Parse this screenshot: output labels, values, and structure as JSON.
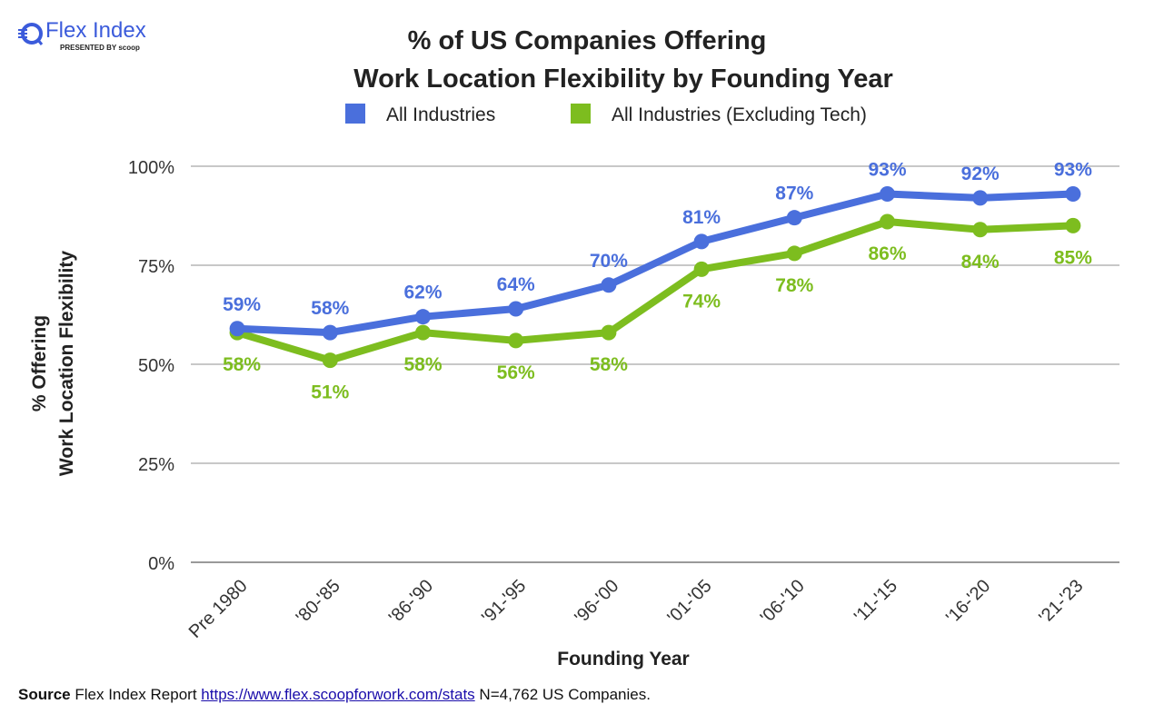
{
  "logo": {
    "name": "Flex Index",
    "presented": "PRESENTED BY scoop"
  },
  "chart_data": {
    "type": "line",
    "title": [
      "% of US Companies Offering",
      "Work Location Flexibility by Founding Year"
    ],
    "xlabel": "Founding Year",
    "ylabel": [
      "% Offering",
      "Work Location Flexibility"
    ],
    "ylim": [
      0,
      100
    ],
    "yticks": [
      0,
      25,
      50,
      75,
      100
    ],
    "ytick_labels": [
      "0%",
      "25%",
      "50%",
      "75%",
      "100%"
    ],
    "grid": true,
    "legend_position": "top",
    "categories": [
      "Pre 1980",
      "'80-'85",
      "'86-'90",
      "'91-'95",
      "'96-'00",
      "'01-'05",
      "'06-'10",
      "'11-'15",
      "'16-'20",
      "'21-'23"
    ],
    "series": [
      {
        "name": "All Industries",
        "color": "#4a6fdc",
        "values": [
          59,
          58,
          62,
          64,
          70,
          81,
          87,
          93,
          92,
          93
        ],
        "labels": [
          "59%",
          "58%",
          "62%",
          "64%",
          "70%",
          "81%",
          "87%",
          "93%",
          "92%",
          "93%"
        ]
      },
      {
        "name": "All Industries (Excluding Tech)",
        "color": "#7dbd1f",
        "values": [
          58,
          51,
          58,
          56,
          58,
          74,
          78,
          86,
          84,
          85
        ],
        "labels": [
          "58%",
          "51%",
          "58%",
          "56%",
          "58%",
          "74%",
          "78%",
          "86%",
          "84%",
          "85%"
        ]
      }
    ]
  },
  "source": {
    "label": "Source",
    "text1": "Flex Index Report",
    "link": "https://www.flex.scoopforwork.com/stats",
    "text2": "N=4,762 US Companies."
  }
}
